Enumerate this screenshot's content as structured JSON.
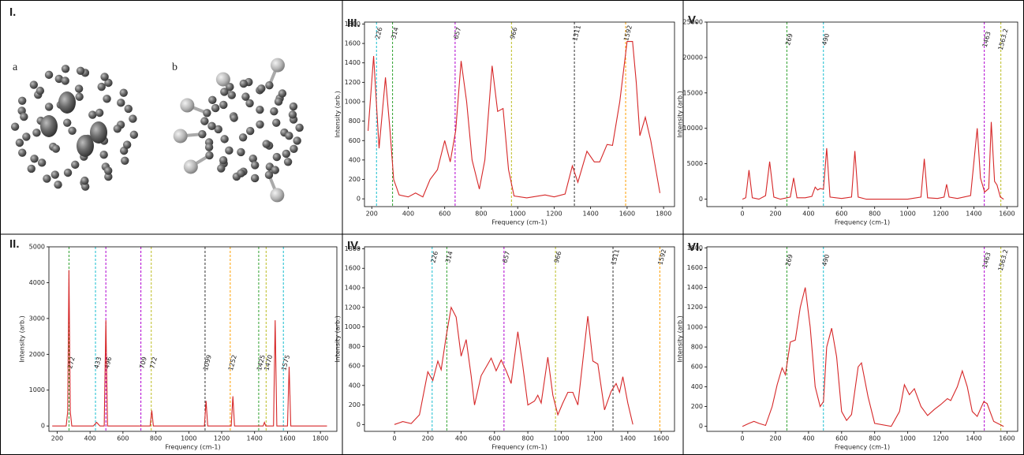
{
  "panel_i": {
    "label": "I.",
    "a": "a",
    "b": "b"
  },
  "chart_data": [
    {
      "type": "line",
      "label": "II.",
      "xlabel": "Frequency (cm-1)",
      "ylabel": "Intensity (arb.)",
      "xlim": [
        150,
        1900
      ],
      "ylim": [
        -150,
        5000
      ],
      "xticks": [
        200,
        400,
        600,
        800,
        1000,
        1200,
        1400,
        1600,
        1800
      ],
      "yticks": [
        0,
        1000,
        2000,
        3000,
        4000,
        5000
      ],
      "vlines": [
        {
          "value": 272,
          "color": "#2ca02c"
        },
        {
          "value": 433,
          "color": "#17becf"
        },
        {
          "value": 496,
          "color": "#b000d0"
        },
        {
          "value": 709,
          "color": "#b000d0"
        },
        {
          "value": 772,
          "color": "#bcbd22"
        },
        {
          "value": 1099,
          "color": "#333333"
        },
        {
          "value": 1252,
          "color": "#ff9f00"
        },
        {
          "value": 1425,
          "color": "#2ca02c"
        },
        {
          "value": 1470,
          "color": "#bcbd22"
        },
        {
          "value": 1575,
          "color": "#17becf"
        }
      ],
      "series": [
        {
          "color": "#d62728",
          "x": [
            170,
            255,
            264,
            272,
            280,
            289,
            420,
            440,
            460,
            486,
            496,
            506,
            765,
            775,
            785,
            1095,
            1105,
            1115,
            1258,
            1268,
            1278,
            1452,
            1460,
            1468,
            1515,
            1525,
            1535,
            1600,
            1610,
            1620,
            1840
          ],
          "values": [
            0,
            0,
            400,
            4350,
            400,
            0,
            0,
            100,
            0,
            0,
            2950,
            0,
            0,
            430,
            0,
            0,
            700,
            0,
            0,
            830,
            0,
            0,
            100,
            0,
            0,
            2950,
            0,
            0,
            1650,
            0,
            0
          ]
        }
      ]
    },
    {
      "type": "line",
      "label": "III.",
      "xlabel": "Frequency (cm-1)",
      "ylabel": "Intensity (arb.)",
      "xlim": [
        160,
        1860
      ],
      "ylim": [
        -80,
        1820
      ],
      "xticks": [
        200,
        400,
        600,
        800,
        1000,
        1200,
        1400,
        1600,
        1800
      ],
      "yticks": [
        0,
        200,
        400,
        600,
        800,
        1000,
        1200,
        1400,
        1600,
        1800
      ],
      "vlines": [
        {
          "value": 226,
          "color": "#17becf"
        },
        {
          "value": 314,
          "color": "#2ca02c"
        },
        {
          "value": 657,
          "color": "#b000d0"
        },
        {
          "value": 966,
          "color": "#bcbd22"
        },
        {
          "value": 1311,
          "color": "#333333"
        },
        {
          "value": 1592,
          "color": "#ff9f00"
        }
      ],
      "series": [
        {
          "color": "#d62728",
          "x": [
            180,
            210,
            240,
            275,
            300,
            320,
            350,
            400,
            440,
            480,
            520,
            560,
            600,
            630,
            660,
            690,
            720,
            750,
            790,
            820,
            860,
            890,
            920,
            950,
            980,
            1050,
            1150,
            1200,
            1260,
            1300,
            1330,
            1380,
            1420,
            1450,
            1490,
            1520,
            1560,
            1600,
            1630,
            1650,
            1670,
            1700,
            1730,
            1780
          ],
          "values": [
            700,
            1470,
            520,
            1250,
            700,
            200,
            40,
            20,
            60,
            20,
            200,
            300,
            600,
            380,
            700,
            1420,
            1000,
            400,
            100,
            400,
            1370,
            900,
            930,
            300,
            30,
            10,
            40,
            20,
            50,
            340,
            170,
            490,
            380,
            380,
            560,
            550,
            1000,
            1620,
            1620,
            1200,
            650,
            840,
            600,
            60
          ]
        }
      ]
    },
    {
      "type": "line",
      "label": "IV.",
      "xlabel": "Frequency (cm-1)",
      "ylabel": "Intensity (arb.)",
      "xlim": [
        -180,
        1680
      ],
      "ylim": [
        -70,
        1820
      ],
      "xticks": [
        0,
        200,
        400,
        600,
        800,
        1000,
        1200,
        1400,
        1600
      ],
      "yticks": [
        0,
        200,
        400,
        600,
        800,
        1000,
        1200,
        1400,
        1600,
        1800
      ],
      "vlines": [
        {
          "value": 226,
          "color": "#17becf"
        },
        {
          "value": 314,
          "color": "#2ca02c"
        },
        {
          "value": 657,
          "color": "#b000d0"
        },
        {
          "value": 966,
          "color": "#bcbd22"
        },
        {
          "value": 1311,
          "color": "#333333"
        },
        {
          "value": 1592,
          "color": "#ff9f00"
        }
      ],
      "series": [
        {
          "color": "#d62728",
          "x": [
            0,
            50,
            100,
            150,
            200,
            230,
            260,
            280,
            310,
            340,
            370,
            400,
            430,
            460,
            480,
            520,
            560,
            580,
            610,
            640,
            670,
            700,
            740,
            770,
            800,
            840,
            860,
            880,
            920,
            950,
            980,
            1010,
            1040,
            1070,
            1100,
            1160,
            1190,
            1220,
            1260,
            1300,
            1330,
            1350,
            1370,
            1400,
            1430
          ],
          "values": [
            0,
            30,
            10,
            100,
            540,
            450,
            650,
            560,
            900,
            1200,
            1100,
            700,
            870,
            500,
            200,
            500,
            620,
            680,
            550,
            660,
            550,
            420,
            950,
            600,
            200,
            240,
            300,
            220,
            690,
            300,
            100,
            220,
            330,
            330,
            200,
            1110,
            650,
            620,
            150,
            340,
            420,
            330,
            490,
            220,
            0
          ]
        }
      ]
    },
    {
      "type": "line",
      "label": "V.",
      "xlabel": "Frequency (cm-1)",
      "ylabel": "Intensity (arb.)",
      "xlim": [
        -215,
        1665
      ],
      "ylim": [
        -1050,
        25000
      ],
      "xticks": [
        0,
        200,
        400,
        600,
        800,
        1000,
        1200,
        1400,
        1600
      ],
      "yticks": [
        0,
        5000,
        10000,
        15000,
        20000,
        25000
      ],
      "vlines": [
        {
          "value": 269,
          "color": "#2ca02c"
        },
        {
          "value": 490,
          "color": "#17becf"
        },
        {
          "value": 1463,
          "color": "#b000d0"
        },
        {
          "value": 1563.2,
          "color": "#bcbd22"
        }
      ],
      "series": [
        {
          "color": "#d62728",
          "x": [
            0,
            20,
            40,
            60,
            100,
            140,
            165,
            190,
            230,
            290,
            310,
            330,
            380,
            420,
            440,
            455,
            470,
            490,
            510,
            530,
            600,
            660,
            680,
            700,
            750,
            1000,
            1080,
            1100,
            1120,
            1180,
            1220,
            1235,
            1250,
            1300,
            1380,
            1420,
            1440,
            1465,
            1490,
            1505,
            1525,
            1540,
            1560,
            1580
          ],
          "values": [
            0,
            200,
            4100,
            200,
            0,
            500,
            5300,
            300,
            0,
            300,
            3000,
            200,
            200,
            400,
            1700,
            1300,
            1500,
            1400,
            7200,
            300,
            100,
            300,
            6800,
            300,
            0,
            0,
            300,
            5700,
            200,
            100,
            300,
            2100,
            300,
            100,
            500,
            10000,
            3000,
            1000,
            1500,
            10900,
            2500,
            2000,
            300,
            0
          ]
        }
      ]
    },
    {
      "type": "line",
      "label": "VI.",
      "xlabel": "Frequency (cm-1)",
      "ylabel": "Intensity (arb.)",
      "xlim": [
        -215,
        1665
      ],
      "ylim": [
        -50,
        1810
      ],
      "xticks": [
        0,
        200,
        400,
        600,
        800,
        1000,
        1200,
        1400,
        1600
      ],
      "yticks": [
        0,
        200,
        400,
        600,
        800,
        1000,
        1200,
        1400,
        1600,
        1800
      ],
      "vlines": [
        {
          "value": 269,
          "color": "#2ca02c"
        },
        {
          "value": 490,
          "color": "#17becf"
        },
        {
          "value": 1463,
          "color": "#b000d0"
        },
        {
          "value": 1563.2,
          "color": "#bcbd22"
        }
      ],
      "series": [
        {
          "color": "#d62728",
          "x": [
            0,
            40,
            70,
            100,
            140,
            180,
            210,
            240,
            260,
            290,
            320,
            350,
            380,
            410,
            440,
            470,
            490,
            510,
            540,
            570,
            600,
            630,
            660,
            700,
            720,
            760,
            800,
            900,
            950,
            980,
            1010,
            1040,
            1080,
            1120,
            1160,
            1200,
            1240,
            1260,
            1300,
            1330,
            1360,
            1390,
            1420,
            1460,
            1480,
            1520,
            1580
          ],
          "values": [
            0,
            30,
            50,
            30,
            10,
            200,
            420,
            590,
            520,
            850,
            870,
            1200,
            1400,
            1000,
            400,
            200,
            250,
            800,
            990,
            700,
            150,
            60,
            120,
            600,
            640,
            300,
            30,
            0,
            150,
            420,
            320,
            380,
            200,
            110,
            170,
            220,
            280,
            260,
            400,
            560,
            400,
            150,
            100,
            250,
            230,
            50,
            0
          ]
        }
      ]
    }
  ]
}
